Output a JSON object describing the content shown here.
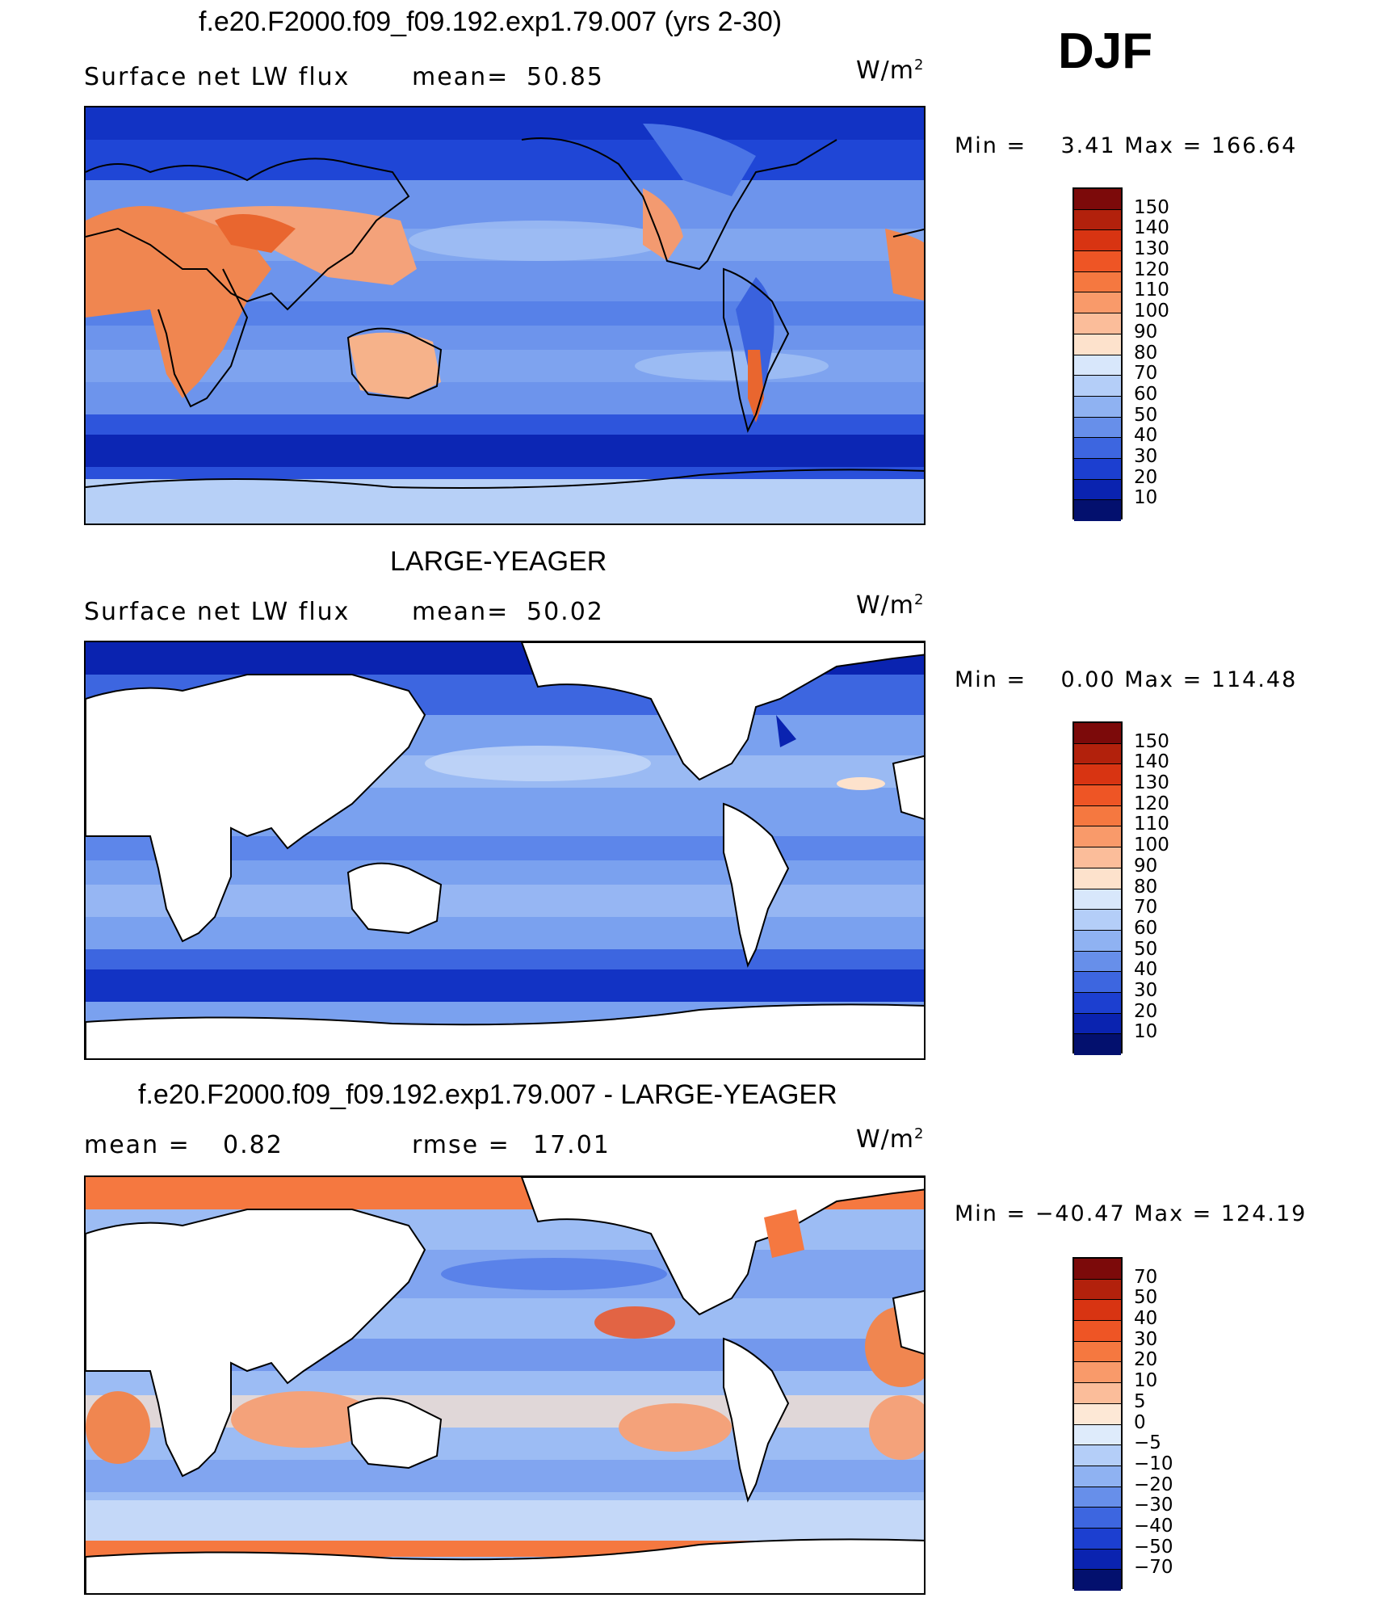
{
  "season": "DJF",
  "colors": {
    "ocean_deep": "#0b1fa8",
    "ocean_mid": "#3a66e4",
    "ocean_light": "#8fb2f2",
    "ocean_pale": "#c4d8f8",
    "land_warm": "#f07848",
    "land_pale": "#fbc9ae",
    "masked_land": "#ffffff",
    "coast": "#000000"
  },
  "panels": [
    {
      "title": "f.e20.F2000.f09_f09.192.exp1.79.007 (yrs 2-30)",
      "left_label": "Surface net LW flux",
      "stat1_label": "mean=",
      "stat1_value": "50.85",
      "units": "W/m",
      "units_exp": "2",
      "min_label": "Min =",
      "min_value": "3.41",
      "max_label": "Max =",
      "max_value": "166.64",
      "colorbar_labels": [
        "150",
        "140",
        "130",
        "120",
        "110",
        "100",
        "90",
        "80",
        "70",
        "60",
        "50",
        "40",
        "30",
        "20",
        "10"
      ]
    },
    {
      "title": "LARGE-YEAGER",
      "left_label": "Surface net LW flux",
      "stat1_label": "mean=",
      "stat1_value": "50.02",
      "units": "W/m",
      "units_exp": "2",
      "min_label": "Min =",
      "min_value": "0.00",
      "max_label": "Max =",
      "max_value": "114.48",
      "colorbar_labels": [
        "150",
        "140",
        "130",
        "120",
        "110",
        "100",
        "90",
        "80",
        "70",
        "60",
        "50",
        "40",
        "30",
        "20",
        "10"
      ]
    },
    {
      "title": "f.e20.F2000.f09_f09.192.exp1.79.007 - LARGE-YEAGER",
      "left_label": "",
      "stat1_label": "mean =",
      "stat1_value": "0.82",
      "stat2_label": "rmse =",
      "stat2_value": "17.01",
      "units": "W/m",
      "units_exp": "2",
      "min_label": "Min =",
      "min_value": "−40.47",
      "max_label": "Max =",
      "max_value": "124.19",
      "colorbar_labels": [
        "70",
        "50",
        "40",
        "30",
        "20",
        "10",
        "5",
        "0",
        "−5",
        "−10",
        "−20",
        "−30",
        "−40",
        "−50",
        "−70"
      ]
    }
  ],
  "colorbar_abs": [
    "#7c0a0a",
    "#b2210c",
    "#d83412",
    "#ee5525",
    "#f57840",
    "#f99a6a",
    "#fbbd9a",
    "#fde2cc",
    "#d8e7fb",
    "#b4cef8",
    "#8fb2f2",
    "#678fea",
    "#3d66e0",
    "#1c3fd0",
    "#0a23b0",
    "#03106e"
  ],
  "colorbar_diff": [
    "#7c0a0a",
    "#b2210c",
    "#d83412",
    "#ee5525",
    "#f57840",
    "#f99a6a",
    "#fbbd9a",
    "#fde8d6",
    "#deebfb",
    "#b4cef8",
    "#8fb2f2",
    "#678fea",
    "#3d66e0",
    "#1c3fd0",
    "#0a23b0",
    "#03106e"
  ]
}
